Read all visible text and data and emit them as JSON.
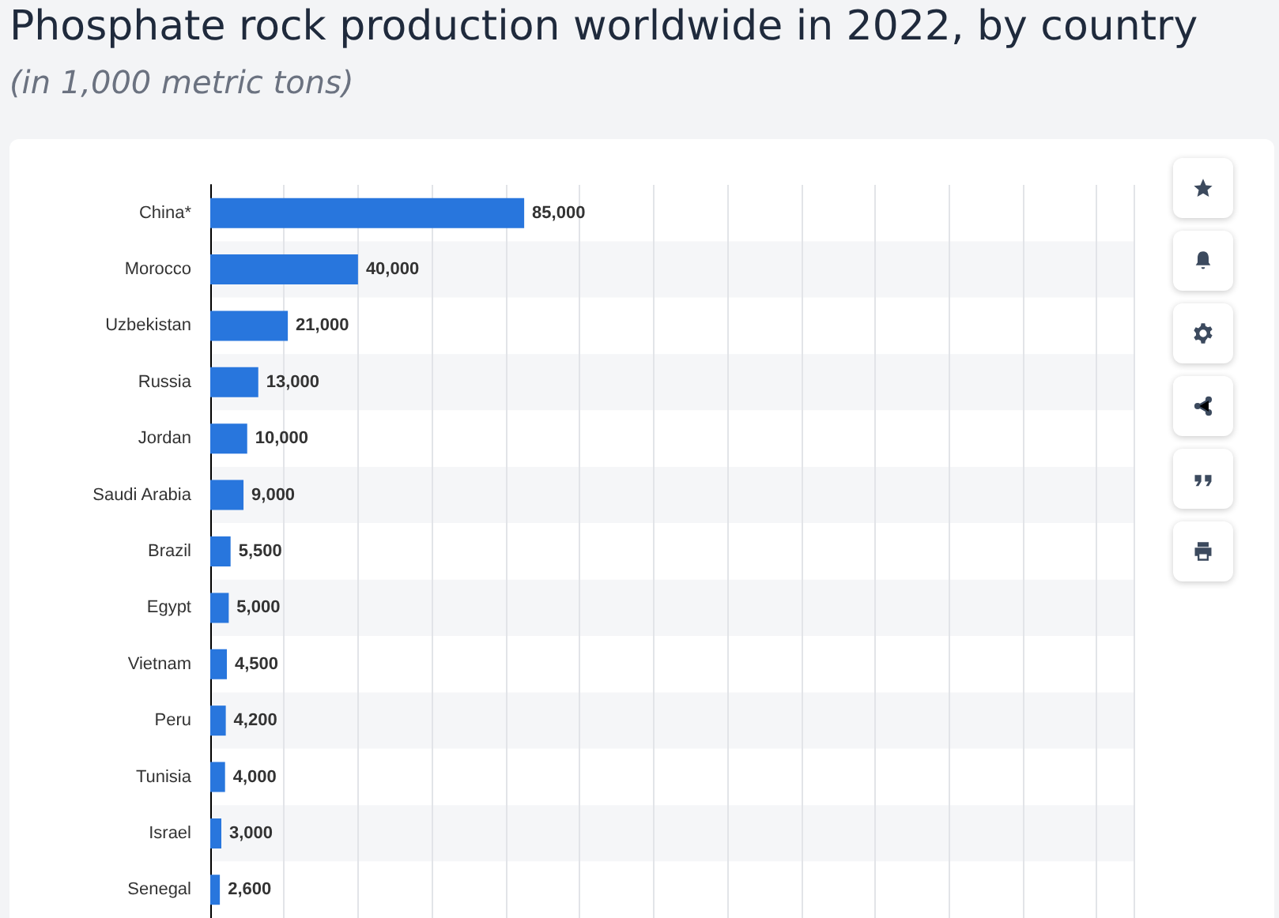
{
  "chart_data": {
    "type": "bar",
    "orientation": "horizontal",
    "title": "Phosphate rock production worldwide in 2022, by country",
    "subtitle": "(in 1,000 metric tons)",
    "categories": [
      "China*",
      "Morocco",
      "Uzbekistan",
      "Russia",
      "Jordan",
      "Saudi Arabia",
      "Brazil",
      "Egypt",
      "Vietnam",
      "Peru",
      "Tunisia",
      "Israel",
      "Senegal"
    ],
    "values": [
      85000,
      40000,
      21000,
      13000,
      10000,
      9000,
      5500,
      5000,
      4500,
      4200,
      4000,
      3000,
      2600
    ],
    "value_labels": [
      "85,000",
      "40,000",
      "21,000",
      "13,000",
      "10,000",
      "9,000",
      "5,500",
      "5,000",
      "4,500",
      "4,200",
      "4,000",
      "3,000",
      "2,600"
    ],
    "color": "#2876dd",
    "grid": "x",
    "tick_labels": "y"
  }
}
